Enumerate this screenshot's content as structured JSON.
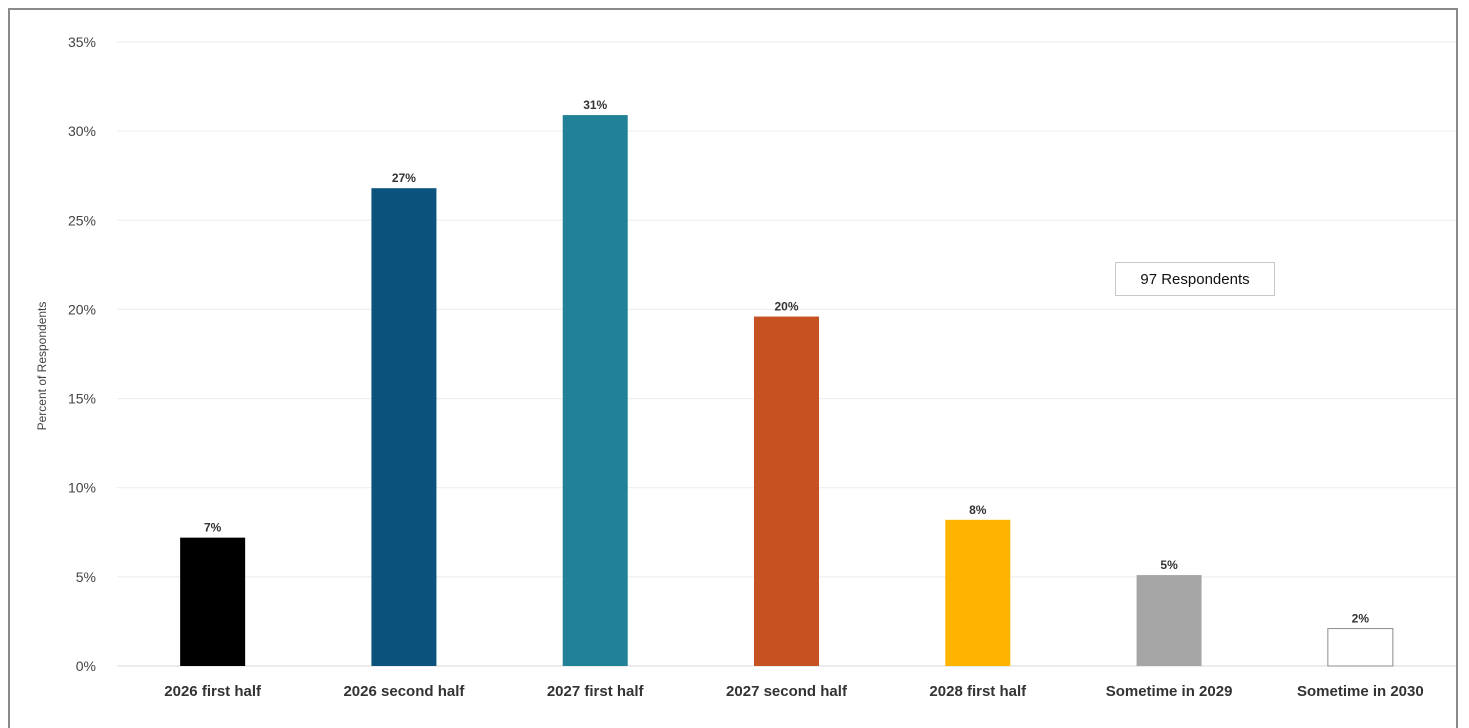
{
  "chart_data": {
    "type": "bar",
    "title": "",
    "xlabel": "",
    "ylabel": "Percent of Respondents",
    "ylim": [
      0,
      35
    ],
    "y_ticks": [
      "0%",
      "5%",
      "10%",
      "15%",
      "20%",
      "25%",
      "30%",
      "35%"
    ],
    "y_tick_values": [
      0,
      5,
      10,
      15,
      20,
      25,
      30,
      35
    ],
    "grid": true,
    "categories": [
      "2026 first half",
      "2026 second half",
      "2027 first half",
      "2027 second half",
      "2028 first half",
      "Sometime in 2029",
      "Sometime in 2030"
    ],
    "values": [
      7.2,
      26.8,
      30.9,
      19.6,
      8.2,
      5.1,
      2.1
    ],
    "data_labels": [
      "7%",
      "27%",
      "31%",
      "20%",
      "8%",
      "5%",
      "2%"
    ],
    "colors": [
      "#000000",
      "#0b527d",
      "#218196",
      "#c75221",
      "#ffb400",
      "#a5a5a5",
      "#ffffff"
    ],
    "annotations": [
      "97 Respondents"
    ]
  }
}
